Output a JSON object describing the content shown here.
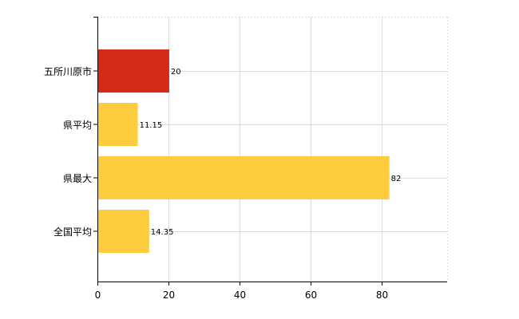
{
  "chart_data": {
    "type": "bar",
    "orientation": "horizontal",
    "categories": [
      "五所川原市",
      "県平均",
      "県最大",
      "全国平均"
    ],
    "values": [
      20,
      11.15,
      82,
      14.35
    ],
    "value_labels": [
      "20",
      "11.15",
      "82",
      "14.35"
    ],
    "bar_colors": [
      "#d42a1a",
      "#fecc3f",
      "#fecc3f",
      "#fecc3f"
    ],
    "xlim": [
      0,
      98.5
    ],
    "xticks": [
      0,
      20,
      40,
      60,
      80
    ],
    "xtick_labels": [
      "0",
      "20",
      "40",
      "60",
      "80"
    ],
    "grid": true,
    "title": "",
    "xlabel": "",
    "ylabel": ""
  }
}
